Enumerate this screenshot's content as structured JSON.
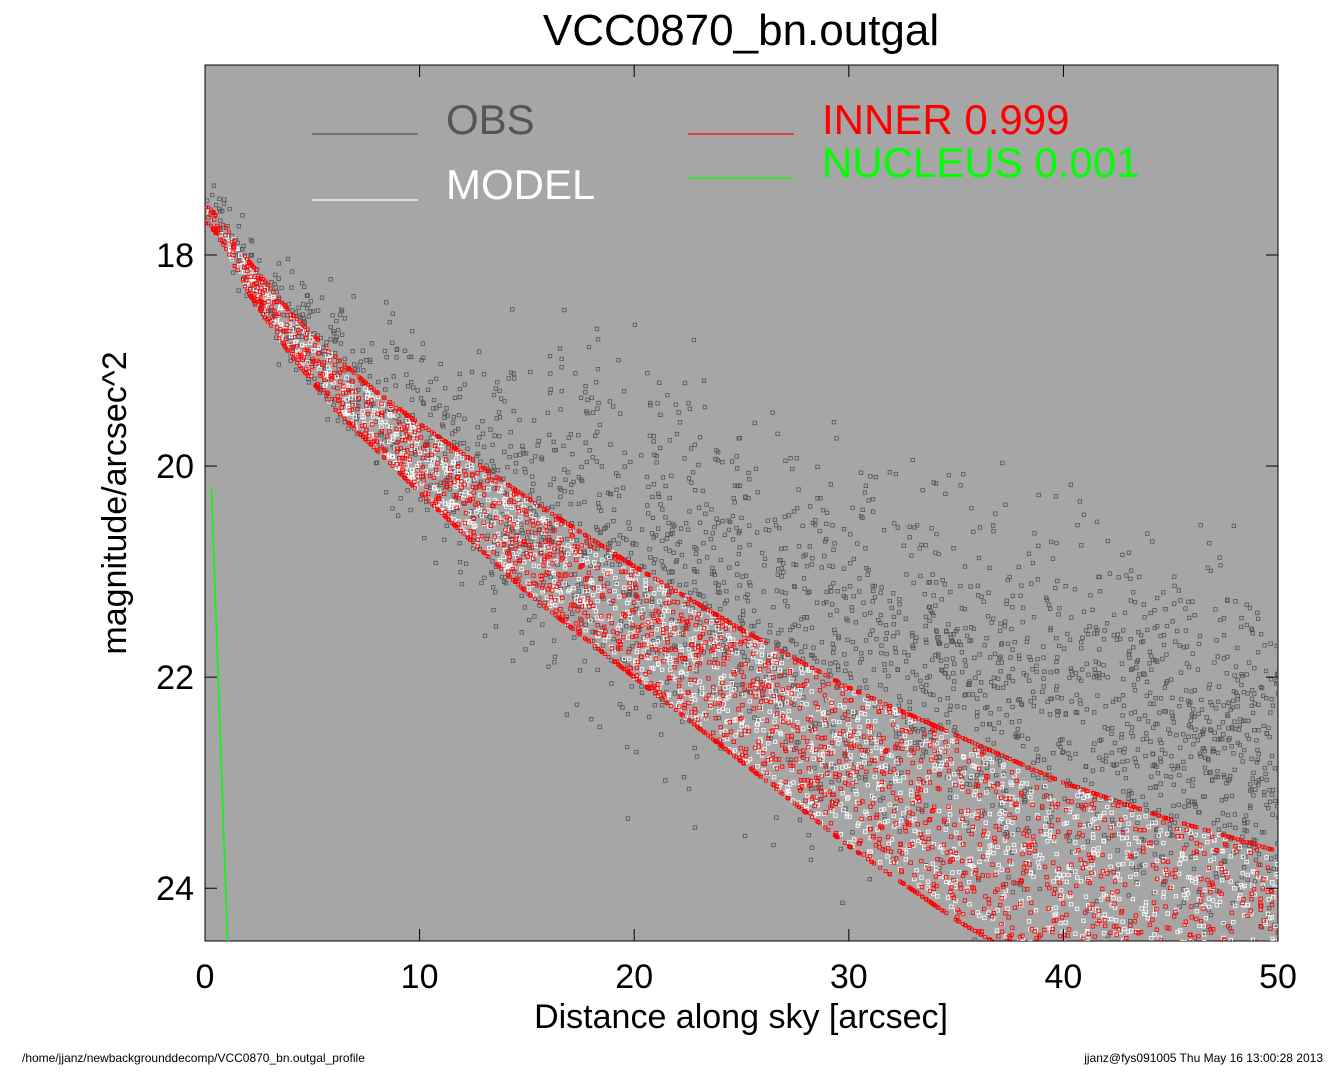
{
  "chart_data": {
    "type": "scatter",
    "title": "VCC0870_bn.outgal",
    "xlabel": "Distance along sky [arcsec]",
    "ylabel": "magnitude/arcsec^2",
    "xlim": [
      0,
      50
    ],
    "ylim": [
      24.5,
      16.2
    ],
    "y_inverted": true,
    "x_ticks": [
      0,
      10,
      20,
      30,
      40,
      50
    ],
    "x_tick_labels": [
      "0",
      "10",
      "20",
      "30",
      "40",
      "50"
    ],
    "y_ticks": [
      18,
      20,
      22,
      24
    ],
    "y_tick_labels": [
      "18",
      "20",
      "22",
      "24"
    ],
    "grid": false,
    "background_color": "#a6a6a6",
    "legend": {
      "placement": "top",
      "entries": [
        {
          "label": "OBS",
          "color": "#555555"
        },
        {
          "label": "MODEL",
          "color": "#ffffff"
        },
        {
          "label": "INNER  0.999",
          "color": "#ff0000"
        },
        {
          "label": "NUCLEUS  0.001",
          "color": "#00ff00"
        }
      ]
    },
    "series": [
      {
        "name": "OBS",
        "color": "#555555",
        "marker": "open-square",
        "trend": {
          "x": [
            0.2,
            1,
            2,
            4,
            6,
            8,
            10,
            15,
            20,
            25,
            30,
            35,
            40,
            45,
            50
          ],
          "y": [
            17.5,
            17.8,
            18.1,
            18.6,
            19.0,
            19.35,
            19.7,
            20.3,
            20.85,
            21.3,
            21.7,
            22.05,
            22.35,
            22.65,
            22.9
          ]
        },
        "scatter_range_mag": 2.2
      },
      {
        "name": "MODEL",
        "color": "#ffffff",
        "marker": "open-square",
        "upper": {
          "x": [
            0.2,
            1,
            2,
            4,
            6,
            8,
            10,
            15,
            20,
            25,
            30,
            35,
            40,
            45,
            50
          ],
          "y": [
            17.55,
            17.75,
            18.05,
            18.55,
            18.95,
            19.3,
            19.6,
            20.3,
            20.95,
            21.55,
            22.1,
            22.55,
            23.0,
            23.35,
            23.65
          ]
        },
        "lower": {
          "x": [
            0.2,
            1,
            2,
            4,
            6,
            8,
            10,
            15,
            20,
            25,
            30,
            35,
            40,
            45,
            50
          ],
          "y": [
            17.7,
            17.95,
            18.35,
            18.95,
            19.45,
            19.85,
            20.25,
            21.2,
            22.0,
            22.8,
            23.6,
            24.3,
            24.9,
            25.4,
            25.9
          ]
        }
      },
      {
        "name": "INNER  0.999",
        "color": "#ff0000",
        "marker": "open-square",
        "upper": {
          "x": [
            0.2,
            1,
            2,
            4,
            6,
            8,
            10,
            15,
            20,
            25,
            30,
            35,
            40,
            45,
            50
          ],
          "y": [
            17.55,
            17.75,
            18.05,
            18.55,
            18.95,
            19.3,
            19.6,
            20.3,
            20.95,
            21.55,
            22.1,
            22.55,
            23.0,
            23.35,
            23.65
          ]
        },
        "lower": {
          "x": [
            0.2,
            1,
            2,
            4,
            6,
            8,
            10,
            15,
            20,
            25,
            30,
            35,
            40,
            45,
            50
          ],
          "y": [
            17.7,
            17.95,
            18.35,
            18.95,
            19.45,
            19.85,
            20.25,
            21.2,
            22.0,
            22.8,
            23.6,
            24.3,
            24.9,
            25.4,
            25.9
          ]
        }
      },
      {
        "name": "NUCLEUS  0.001",
        "color": "#00ff00",
        "marker": "line",
        "x": [
          0.3,
          1.05
        ],
        "y": [
          20.2,
          24.5
        ]
      }
    ]
  },
  "footer": {
    "left": "/home/jjanz/newbackgrounddecomp/VCC0870_bn.outgal_profile",
    "right": "jjanz@fys091005  Thu May 16 13:00:28 2013"
  }
}
